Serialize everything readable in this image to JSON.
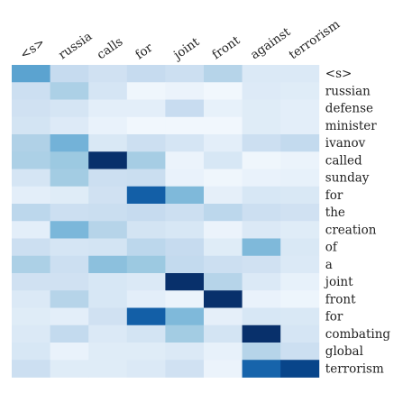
{
  "chart_data": {
    "type": "heatmap",
    "title": "",
    "xlabel": "",
    "ylabel": "",
    "x_labels": [
      "<s>",
      "russia",
      "calls",
      "for",
      "joint",
      "front",
      "against",
      "terrorism"
    ],
    "y_labels": [
      "<s>",
      "russian",
      "defense",
      "minister",
      "ivanov",
      "called",
      "sunday",
      "for",
      "the",
      "creation",
      "of",
      "a",
      "joint",
      "front",
      "for",
      "combating",
      "global",
      "terrorism"
    ],
    "colormap": "Blues",
    "values": [
      [
        0.55,
        0.25,
        0.2,
        0.25,
        0.22,
        0.3,
        0.14,
        0.14
      ],
      [
        0.22,
        0.33,
        0.17,
        0.04,
        0.06,
        0.03,
        0.13,
        0.12
      ],
      [
        0.2,
        0.17,
        0.1,
        0.1,
        0.24,
        0.08,
        0.12,
        0.1
      ],
      [
        0.18,
        0.13,
        0.07,
        0.03,
        0.03,
        0.03,
        0.12,
        0.1
      ],
      [
        0.32,
        0.48,
        0.15,
        0.22,
        0.17,
        0.1,
        0.22,
        0.26
      ],
      [
        0.33,
        0.38,
        1.0,
        0.35,
        0.06,
        0.16,
        0.04,
        0.06
      ],
      [
        0.17,
        0.36,
        0.22,
        0.23,
        0.07,
        0.04,
        0.07,
        0.08
      ],
      [
        0.1,
        0.12,
        0.2,
        0.82,
        0.45,
        0.09,
        0.16,
        0.15
      ],
      [
        0.28,
        0.22,
        0.23,
        0.25,
        0.22,
        0.28,
        0.22,
        0.2
      ],
      [
        0.1,
        0.46,
        0.3,
        0.18,
        0.16,
        0.06,
        0.14,
        0.12
      ],
      [
        0.22,
        0.17,
        0.18,
        0.28,
        0.25,
        0.12,
        0.45,
        0.15
      ],
      [
        0.33,
        0.22,
        0.42,
        0.38,
        0.26,
        0.22,
        0.2,
        0.14
      ],
      [
        0.2,
        0.2,
        0.16,
        0.14,
        1.0,
        0.3,
        0.14,
        0.08
      ],
      [
        0.14,
        0.3,
        0.16,
        0.1,
        0.06,
        1.0,
        0.07,
        0.05
      ],
      [
        0.12,
        0.1,
        0.2,
        0.82,
        0.45,
        0.09,
        0.16,
        0.15
      ],
      [
        0.14,
        0.26,
        0.14,
        0.18,
        0.36,
        0.18,
        1.0,
        0.17
      ],
      [
        0.16,
        0.07,
        0.12,
        0.12,
        0.14,
        0.08,
        0.3,
        0.22
      ],
      [
        0.22,
        0.12,
        0.12,
        0.14,
        0.2,
        0.06,
        0.8,
        0.92
      ]
    ]
  }
}
